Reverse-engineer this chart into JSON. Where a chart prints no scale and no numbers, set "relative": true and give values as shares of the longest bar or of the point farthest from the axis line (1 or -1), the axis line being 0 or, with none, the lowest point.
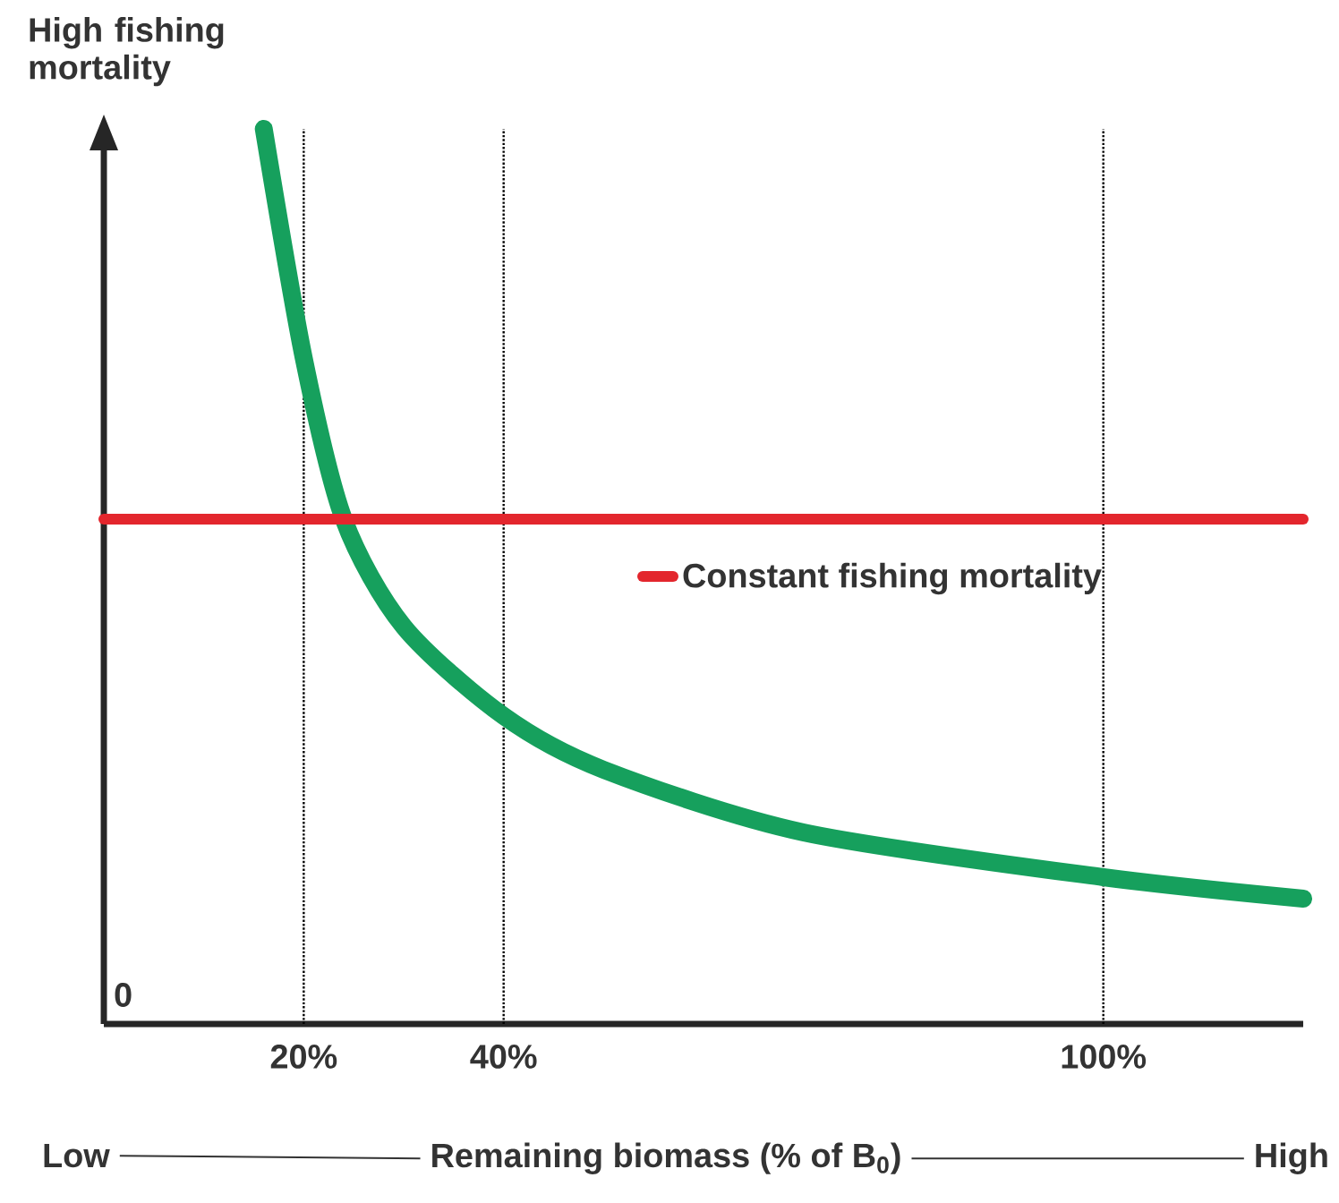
{
  "chart_data": {
    "type": "line",
    "relative": true,
    "xlabel": "Remaining biomass (% of B$_{0}$)",
    "ylabel": "High fishing mortality",
    "xlim": [
      0,
      120
    ],
    "xticks": [
      {
        "value": 20,
        "label": "20%"
      },
      {
        "value": 40,
        "label": "40%"
      },
      {
        "value": 100,
        "label": "100%"
      }
    ],
    "series": [
      {
        "color": "#16a05d",
        "x": [
          16,
          20,
          24,
          30,
          40,
          50,
          70,
          100,
          120
        ],
        "values": [
          1.0,
          0.744,
          0.564,
          0.444,
          0.344,
          0.284,
          0.214,
          0.164,
          0.14
        ]
      },
      {
        "name": "Constant fishing mortality",
        "color": "#e3262d",
        "x": [
          0,
          120
        ],
        "values": [
          0.564,
          0.564
        ]
      }
    ],
    "ref_lines": [
      {
        "axis": "x",
        "value": 20,
        "line_style": "dotted"
      },
      {
        "axis": "x",
        "value": 40,
        "line_style": "dotted"
      },
      {
        "axis": "x",
        "value": 100,
        "line_style": "dotted"
      }
    ],
    "annotations": [
      "0",
      "Low",
      "High"
    ],
    "legend": "right",
    "grid": false,
    "marker": "none",
    "line_style": "solid"
  }
}
